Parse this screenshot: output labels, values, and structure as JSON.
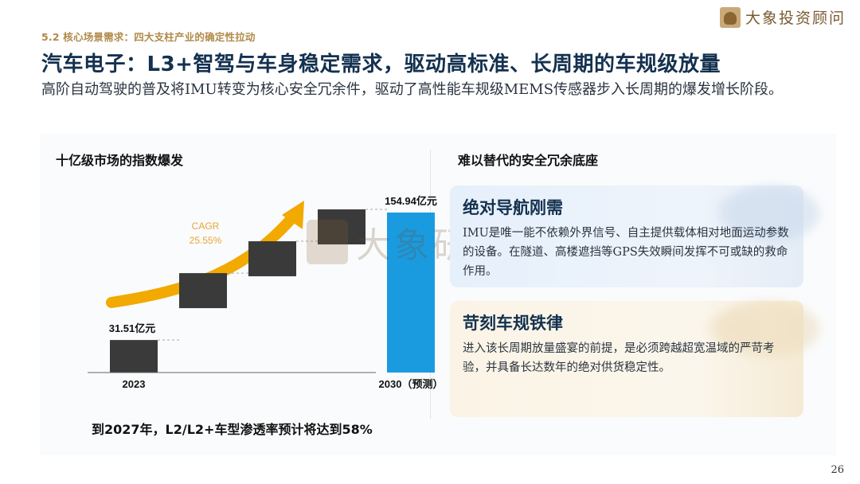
{
  "header": {
    "section_tag": "5.2 核心场景需求：四大支柱产业的确定性拉动",
    "brand_name": "大象投资顾问",
    "title": "汽车电子：L3+智驾与车身稳定需求，驱动高标准、长周期的车规级放量",
    "subtitle": "高阶自动驾驶的普及将IMU转变为核心安全冗余件，驱动了高性能车规级MEMS传感器步入长周期的爆发增长阶段。"
  },
  "left": {
    "heading": "十亿级市场的指数爆发",
    "footnote": "到2027年，L2/L2+车型渗透率预计将达到58%"
  },
  "watermark": {
    "text": "大象研究院"
  },
  "right": {
    "heading": "难以替代的安全冗余底座",
    "cards": [
      {
        "title": "绝对导航刚需",
        "body": "IMU是唯一能不依赖外界信号、自主提供载体相对地面运动参数的设备。在隧道、高楼遮挡等GPS失效瞬间发挥不可或缺的救命作用。"
      },
      {
        "title": "苛刻车规铁律",
        "body": "进入该长周期放量盛宴的前提，是必须跨越超宽温域的严苛考验，并具备长达数年的绝对供货稳定性。"
      }
    ]
  },
  "chart_data": {
    "type": "bar",
    "subtype": "waterfall",
    "categories": [
      "2023",
      "",
      "",
      "",
      "2030（预测）"
    ],
    "start_value": 31.51,
    "end_value": 154.94,
    "start_label": "31.51亿元",
    "end_label": "154.94亿元",
    "unit": "亿元",
    "cagr_label": "CAGR",
    "cagr_value": "25.55%",
    "colors": {
      "bars": "#3a3a3a",
      "final": "#1a9be0",
      "arrow": "#f2a900",
      "cagr_text": "#e8a53a"
    }
  },
  "footer": {
    "page": "26"
  }
}
